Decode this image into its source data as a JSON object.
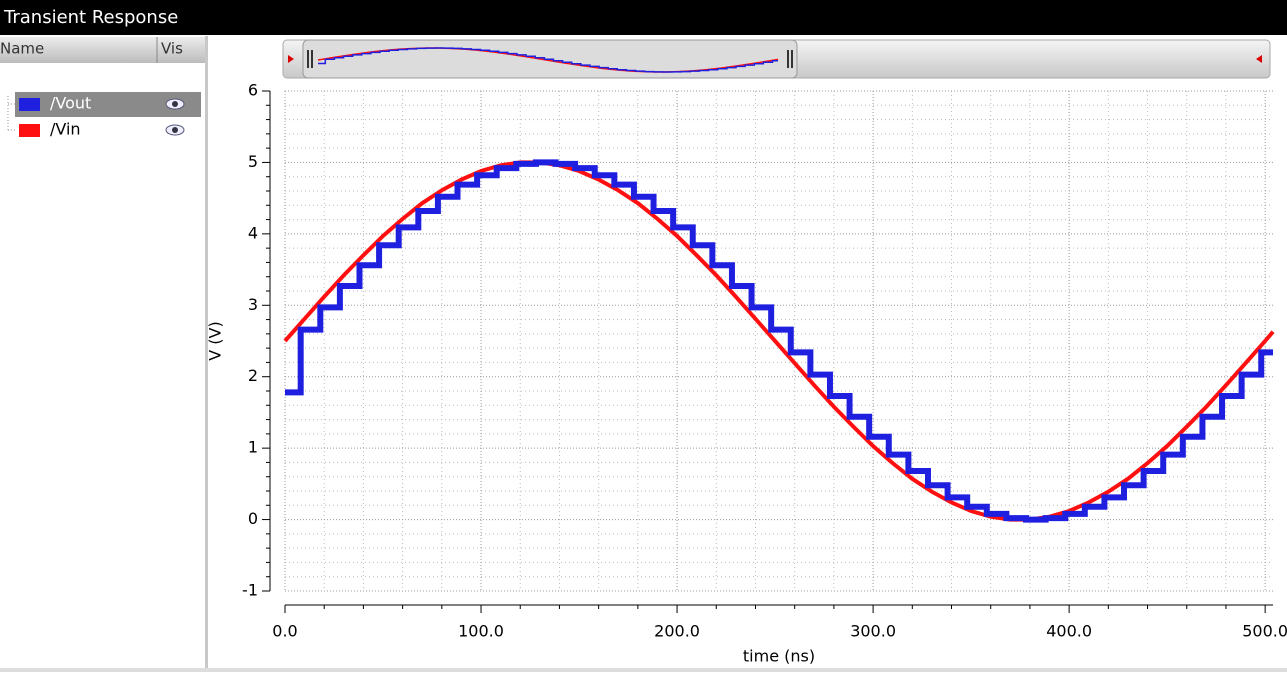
{
  "window": {
    "title": "Transient Response"
  },
  "signal_list": {
    "headers": [
      "Name",
      "Vis"
    ]
  },
  "chart_data": {
    "type": "line",
    "xlabel": "time (ns)",
    "ylabel": "V (V)",
    "xlim": [
      0,
      504
    ],
    "ylim": [
      -1,
      6
    ],
    "xticks": [
      {
        "value": 0,
        "label": "0.0"
      },
      {
        "value": 100,
        "label": "100.0"
      },
      {
        "value": 200,
        "label": "200.0"
      },
      {
        "value": 300,
        "label": "300.0"
      },
      {
        "value": 400,
        "label": "400.0"
      },
      {
        "value": 500,
        "label": "500.0"
      }
    ],
    "yticks": [
      -1,
      0,
      1,
      2,
      3,
      4,
      5,
      6
    ],
    "grid": true,
    "series": [
      {
        "name": "/Vout",
        "color": "#1f1fe0",
        "step": true,
        "x": [
          0,
          8,
          18,
          28,
          38,
          48,
          58,
          68,
          78,
          88,
          98,
          108,
          118,
          128,
          138,
          148,
          158,
          168,
          178,
          188,
          198,
          208,
          218,
          228,
          238,
          248,
          258,
          268,
          278,
          288,
          298,
          308,
          318,
          328,
          338,
          348,
          358,
          368,
          378,
          388,
          398,
          408,
          418,
          428,
          438,
          448,
          458,
          468,
          478,
          488,
          498
        ],
        "values": [
          1.78,
          2.66,
          2.97,
          3.27,
          3.56,
          3.84,
          4.09,
          4.32,
          4.52,
          4.69,
          4.82,
          4.92,
          4.98,
          5.0,
          4.98,
          4.92,
          4.82,
          4.69,
          4.52,
          4.32,
          4.09,
          3.84,
          3.56,
          3.27,
          2.97,
          2.66,
          2.34,
          2.03,
          1.73,
          1.44,
          1.16,
          0.91,
          0.68,
          0.48,
          0.31,
          0.18,
          0.08,
          0.02,
          0.0,
          0.02,
          0.08,
          0.18,
          0.31,
          0.48,
          0.68,
          0.91,
          1.16,
          1.44,
          1.73,
          2.03,
          2.34
        ]
      },
      {
        "name": "/Vin",
        "color": "#ff1010",
        "step": false,
        "x": [
          0,
          10,
          20,
          30,
          40,
          50,
          60,
          70,
          80,
          90,
          100,
          110,
          120,
          130,
          140,
          150,
          160,
          170,
          180,
          190,
          200,
          210,
          220,
          230,
          240,
          250,
          260,
          270,
          280,
          290,
          300,
          310,
          320,
          330,
          340,
          350,
          360,
          370,
          380,
          390,
          400,
          410,
          420,
          430,
          440,
          450,
          460,
          470,
          480,
          490,
          500,
          504
        ],
        "values": [
          2.5,
          2.81,
          3.12,
          3.42,
          3.7,
          3.97,
          4.21,
          4.43,
          4.61,
          4.76,
          4.88,
          4.96,
          5.0,
          5.0,
          4.96,
          4.88,
          4.76,
          4.61,
          4.43,
          4.21,
          3.97,
          3.7,
          3.42,
          3.12,
          2.81,
          2.5,
          2.19,
          1.88,
          1.58,
          1.3,
          1.03,
          0.79,
          0.57,
          0.39,
          0.24,
          0.12,
          0.04,
          0.0,
          0.0,
          0.04,
          0.12,
          0.24,
          0.39,
          0.57,
          0.79,
          1.03,
          1.3,
          1.58,
          1.88,
          2.19,
          2.5,
          2.63
        ]
      }
    ]
  }
}
